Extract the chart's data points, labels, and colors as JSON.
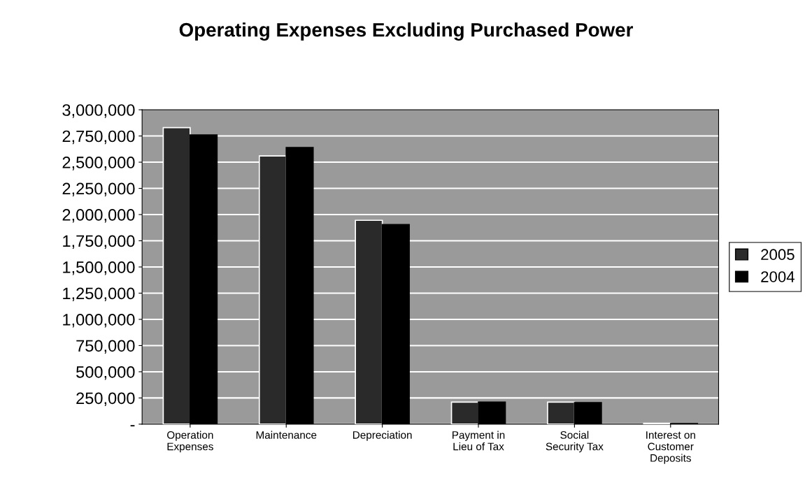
{
  "chart_data": {
    "type": "bar",
    "title": "Operating Expenses Excluding Purchased Power",
    "categories": [
      "Operation\nExpenses",
      "Maintenance",
      "Depreciation",
      "Payment in\nLieu of Tax",
      "Social\nSecurity Tax",
      "Interest on\nCustomer\nDeposits"
    ],
    "series": [
      {
        "name": "2005",
        "color": "#2a2a2a",
        "values": [
          2830000,
          2560000,
          1945000,
          210000,
          210000,
          8000
        ]
      },
      {
        "name": "2004",
        "color": "#000000",
        "values": [
          2760000,
          2640000,
          1905000,
          210000,
          205000,
          6000
        ]
      }
    ],
    "ylim": [
      0,
      3000000
    ],
    "yticks": [
      {
        "value": 0,
        "label": "-"
      },
      {
        "value": 250000,
        "label": "250,000"
      },
      {
        "value": 500000,
        "label": "500,000"
      },
      {
        "value": 750000,
        "label": "750,000"
      },
      {
        "value": 1000000,
        "label": "1,000,000"
      },
      {
        "value": 1250000,
        "label": "1,250,000"
      },
      {
        "value": 1500000,
        "label": "1,500,000"
      },
      {
        "value": 1750000,
        "label": "1,750,000"
      },
      {
        "value": 2000000,
        "label": "2,000,000"
      },
      {
        "value": 2250000,
        "label": "2,250,000"
      },
      {
        "value": 2500000,
        "label": "2,500,000"
      },
      {
        "value": 2750000,
        "label": "2,750,000"
      },
      {
        "value": 3000000,
        "label": "3,000,000"
      }
    ],
    "grid": "y",
    "legend": "right"
  }
}
